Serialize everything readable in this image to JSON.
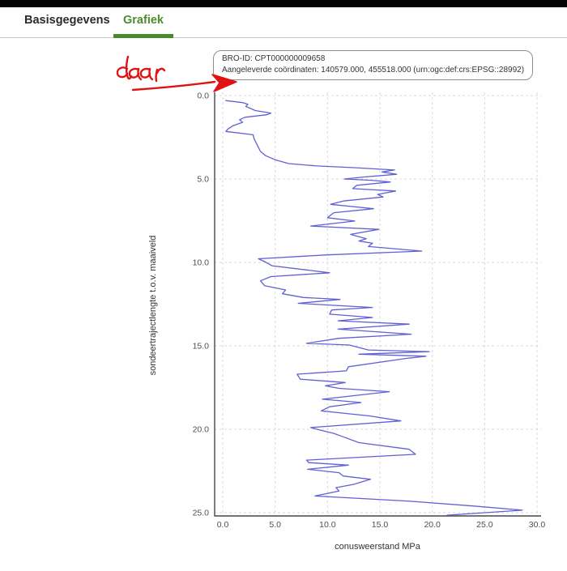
{
  "tabs": {
    "items": [
      {
        "label": "Basisgegevens",
        "active": false
      },
      {
        "label": "Grafiek",
        "active": true
      }
    ]
  },
  "info_box": {
    "line1": "BRO-ID: CPT000000009658",
    "line2": "Aangeleverde coördinaten: 140579.000, 455518.000 (urn:ogc:def:crs:EPSG::28992)"
  },
  "annotation": {
    "text": "daar",
    "color": "#e01212"
  },
  "colors": {
    "tab_active": "#4c8b2e",
    "tab_underline": "#4a8928",
    "series_line": "#6060d6",
    "grid": "#d8d8d8",
    "axis": "#474747"
  },
  "chart_data": {
    "type": "line",
    "title": "",
    "xlabel": "conusweerstand MPa",
    "ylabel": "sondeertrajectlengte t.o.v. maaiveld",
    "xlim": [
      0,
      30
    ],
    "ylim": [
      0,
      25
    ],
    "y_inverted": true,
    "grid": true,
    "legend": "none",
    "x_ticks": [
      0,
      5,
      10,
      15,
      20,
      25,
      30
    ],
    "x_tick_labels": [
      "0.0",
      "5.0",
      "10.0",
      "15.0",
      "20.0",
      "25.0",
      "30.0"
    ],
    "y_ticks": [
      0,
      5,
      10,
      15,
      20,
      25
    ],
    "y_tick_labels": [
      "0.0",
      "5.0",
      "10.0",
      "15.0",
      "20.0",
      "25.0"
    ],
    "series": [
      {
        "name": "conusweerstand",
        "color": "#6060d6",
        "units_x": "MPa",
        "units_y": "m t.o.v. maaiveld",
        "points": [
          [
            0.3,
            0.3
          ],
          [
            1.9,
            0.42
          ],
          [
            2.4,
            0.52
          ],
          [
            2.2,
            0.65
          ],
          [
            2.7,
            0.78
          ],
          [
            3.1,
            0.9
          ],
          [
            4.6,
            1.05
          ],
          [
            4.2,
            1.15
          ],
          [
            2.1,
            1.3
          ],
          [
            1.6,
            1.45
          ],
          [
            1.9,
            1.6
          ],
          [
            1.0,
            1.8
          ],
          [
            0.5,
            2.0
          ],
          [
            0.3,
            2.15
          ],
          [
            2.9,
            2.35
          ],
          [
            3.0,
            2.6
          ],
          [
            3.2,
            2.85
          ],
          [
            3.4,
            3.1
          ],
          [
            3.6,
            3.35
          ],
          [
            4.1,
            3.6
          ],
          [
            5.0,
            3.85
          ],
          [
            6.3,
            4.08
          ],
          [
            9.0,
            4.22
          ],
          [
            12.5,
            4.32
          ],
          [
            16.4,
            4.46
          ],
          [
            15.2,
            4.58
          ],
          [
            16.6,
            4.72
          ],
          [
            13.5,
            4.88
          ],
          [
            11.6,
            5.0
          ],
          [
            14.2,
            5.08
          ],
          [
            16.0,
            5.18
          ],
          [
            12.8,
            5.38
          ],
          [
            12.4,
            5.58
          ],
          [
            16.5,
            5.72
          ],
          [
            14.8,
            5.92
          ],
          [
            15.3,
            6.08
          ],
          [
            11.5,
            6.32
          ],
          [
            10.3,
            6.52
          ],
          [
            14.4,
            6.78
          ],
          [
            10.6,
            7.02
          ],
          [
            10.0,
            7.32
          ],
          [
            12.6,
            7.52
          ],
          [
            8.4,
            7.82
          ],
          [
            14.9,
            8.02
          ],
          [
            12.2,
            8.32
          ],
          [
            13.7,
            8.58
          ],
          [
            13.0,
            8.72
          ],
          [
            14.3,
            8.85
          ],
          [
            13.9,
            9.05
          ],
          [
            19.0,
            9.32
          ],
          [
            10.0,
            9.55
          ],
          [
            3.4,
            9.78
          ],
          [
            4.0,
            9.95
          ],
          [
            4.7,
            10.2
          ],
          [
            8.0,
            10.45
          ],
          [
            10.2,
            10.62
          ],
          [
            4.6,
            10.85
          ],
          [
            3.6,
            11.1
          ],
          [
            4.0,
            11.4
          ],
          [
            6.0,
            11.65
          ],
          [
            5.7,
            11.88
          ],
          [
            7.7,
            12.1
          ],
          [
            11.2,
            12.22
          ],
          [
            7.2,
            12.45
          ],
          [
            14.3,
            12.7
          ],
          [
            10.4,
            12.85
          ],
          [
            10.2,
            13.1
          ],
          [
            14.3,
            13.3
          ],
          [
            11.0,
            13.5
          ],
          [
            17.8,
            13.7
          ],
          [
            11.0,
            14.0
          ],
          [
            18.0,
            14.3
          ],
          [
            11.1,
            14.55
          ],
          [
            8.0,
            14.85
          ],
          [
            12.1,
            14.95
          ],
          [
            13.9,
            15.25
          ],
          [
            19.7,
            15.35
          ],
          [
            13.0,
            15.5
          ],
          [
            19.4,
            15.62
          ],
          [
            17.6,
            15.75
          ],
          [
            12.0,
            16.25
          ],
          [
            11.8,
            16.5
          ],
          [
            7.1,
            16.7
          ],
          [
            7.4,
            17.0
          ],
          [
            11.7,
            17.2
          ],
          [
            9.8,
            17.4
          ],
          [
            11.1,
            17.55
          ],
          [
            15.9,
            17.75
          ],
          [
            9.5,
            18.2
          ],
          [
            13.2,
            18.4
          ],
          [
            10.2,
            18.65
          ],
          [
            9.4,
            18.9
          ],
          [
            14.0,
            19.2
          ],
          [
            17.0,
            19.5
          ],
          [
            8.4,
            19.9
          ],
          [
            9.3,
            20.05
          ],
          [
            10.6,
            20.25
          ],
          [
            11.5,
            20.45
          ],
          [
            13.0,
            20.8
          ],
          [
            17.8,
            21.2
          ],
          [
            18.4,
            21.5
          ],
          [
            8.0,
            21.85
          ],
          [
            8.2,
            22.0
          ],
          [
            12.0,
            22.15
          ],
          [
            8.1,
            22.4
          ],
          [
            11.1,
            22.6
          ],
          [
            11.5,
            22.8
          ],
          [
            14.1,
            23.0
          ],
          [
            12.5,
            23.3
          ],
          [
            10.8,
            23.5
          ],
          [
            11.1,
            23.7
          ],
          [
            8.8,
            24.0
          ],
          [
            17.6,
            24.3
          ],
          [
            24.0,
            24.6
          ],
          [
            28.6,
            24.85
          ],
          [
            21.4,
            25.15
          ]
        ]
      }
    ]
  }
}
